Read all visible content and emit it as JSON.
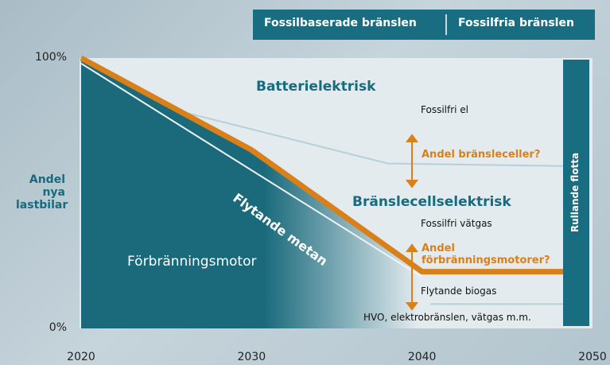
{
  "legend_labels": [
    "Fossilbaserade bränslen",
    "Fossilfria bränslen"
  ],
  "chart_data": {
    "type": "line",
    "ylabel": "Andel nya lastbilar",
    "xlim": [
      2020,
      2050
    ],
    "xticks": [
      2020,
      2030,
      2040,
      2050
    ],
    "ylim": [
      0,
      100
    ],
    "yticks": [
      {
        "value": 0,
        "label": "0%"
      },
      {
        "value": 100,
        "label": "100%"
      }
    ],
    "series": [
      {
        "color": "#d9801a",
        "x": [
          2020,
          2030,
          2040,
          2049
        ],
        "values": [
          100,
          66,
          21,
          21
        ]
      },
      {
        "color": "#eef4f6",
        "x": [
          2020,
          2040
        ],
        "values": [
          98,
          19
        ]
      },
      {
        "color": "#b6cfd9",
        "x": [
          2040.5,
          2049
        ],
        "values": [
          9,
          9
        ]
      },
      {
        "color": "#b6cfd9",
        "x": [
          2026,
          2038,
          2049
        ],
        "values": [
          80,
          61,
          60
        ]
      }
    ],
    "annotations": [
      "Batterielektrisk",
      "Fossilfri el",
      "Andel bränsleceller?",
      "Bränslecellselektrisk",
      "Fossilfri vätgas",
      "Andel förbränningsmotorer?",
      "Flytande biogas",
      "HVO, elektrobränslen, vätgas m.m.",
      "Förbränningsmotor",
      "Flytande metan",
      "Rullande flotta"
    ]
  }
}
